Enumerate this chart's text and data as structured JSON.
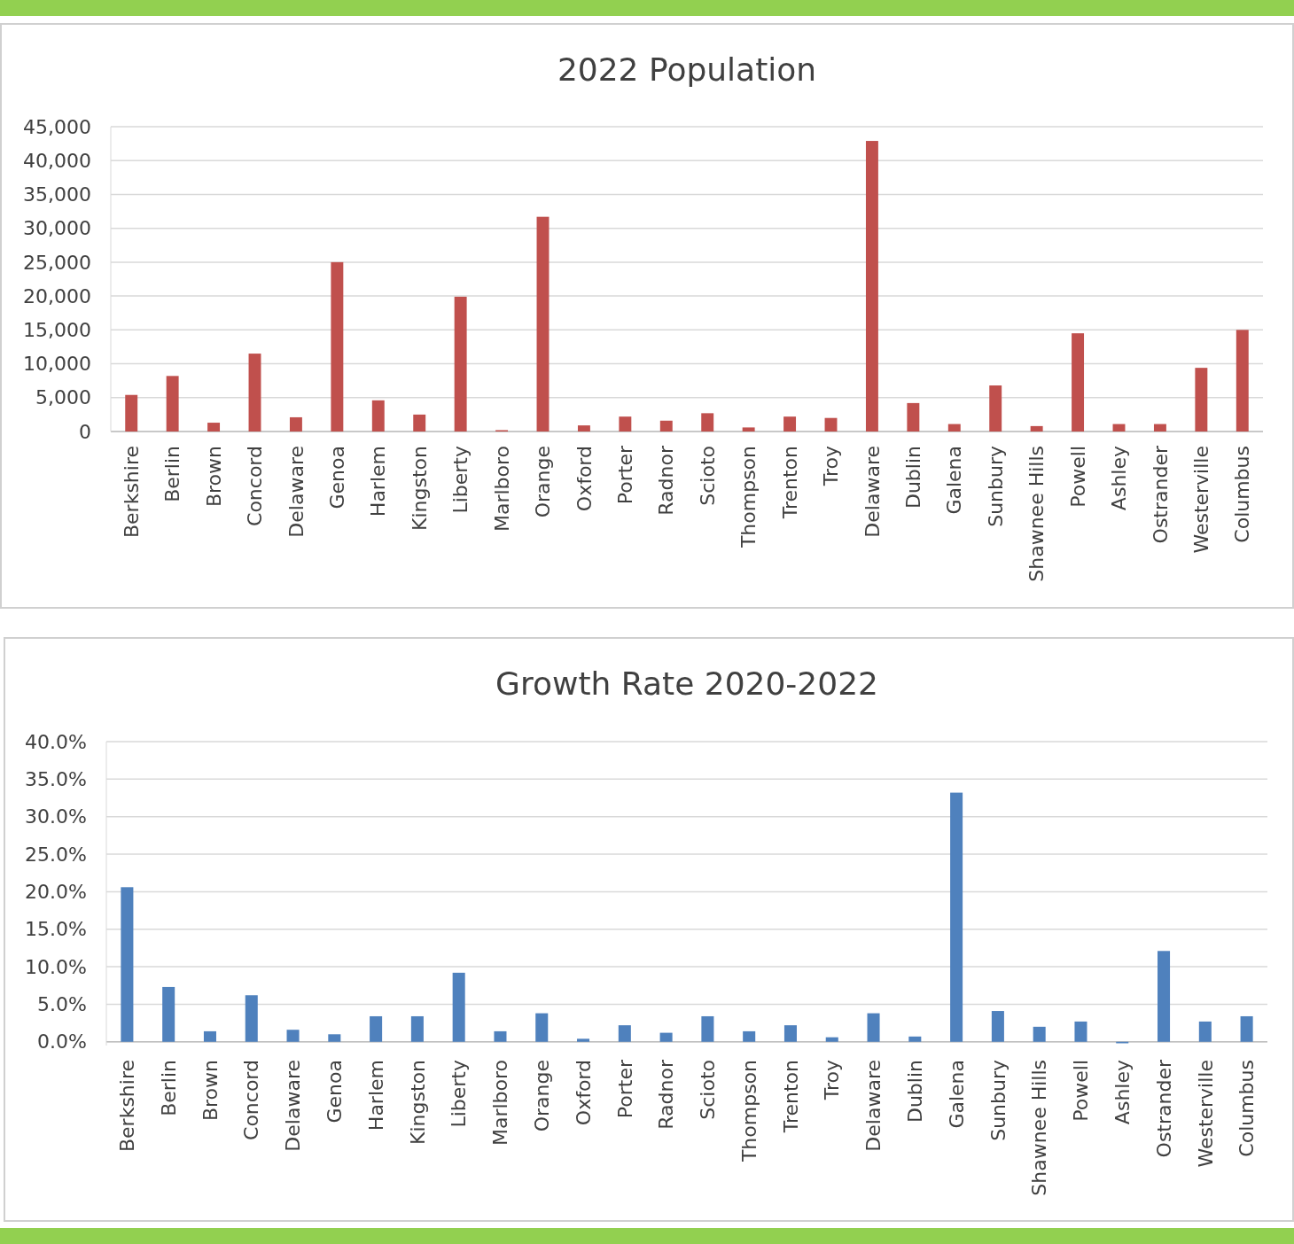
{
  "chart_data": [
    {
      "type": "bar",
      "title": "2022 Population",
      "categories": [
        "Berkshire",
        "Berlin",
        "Brown",
        "Concord",
        "Delaware",
        "Genoa",
        "Harlem",
        "Kingston",
        "Liberty",
        "Marlboro",
        "Orange",
        "Oxford",
        "Porter",
        "Radnor",
        "Scioto",
        "Thompson",
        "Trenton",
        "Troy",
        "Delaware",
        "Dublin",
        "Galena",
        "Sunbury",
        "Shawnee Hills",
        "Powell",
        "Ashley",
        "Ostrander",
        "Westerville",
        "Columbus"
      ],
      "values": [
        5400,
        8200,
        1300,
        11500,
        2100,
        25000,
        4600,
        2500,
        19900,
        200,
        31700,
        900,
        2200,
        1600,
        2700,
        600,
        2200,
        2000,
        42900,
        4200,
        1100,
        6800,
        800,
        14500,
        1100,
        1100,
        9400,
        15000
      ],
      "color": "#c0504d",
      "ylim": [
        0,
        45000
      ],
      "yticks": [
        0,
        {
          "value": 5000,
          "label": "5,000"
        },
        {
          "value": 10000,
          "label": "10,000"
        },
        {
          "value": 15000,
          "label": "15,000"
        },
        {
          "value": 20000,
          "label": "20,000"
        },
        {
          "value": 25000,
          "label": "25,000"
        },
        {
          "value": 30000,
          "label": "30,000"
        },
        {
          "value": 35000,
          "label": "35,000"
        },
        {
          "value": 40000,
          "label": "40,000"
        },
        {
          "value": 45000,
          "label": "45,000"
        }
      ],
      "grid": "y"
    },
    {
      "type": "bar",
      "title": "Growth Rate 2020-2022",
      "categories": [
        "Berkshire",
        "Berlin",
        "Brown",
        "Concord",
        "Delaware",
        "Genoa",
        "Harlem",
        "Kingston",
        "Liberty",
        "Marlboro",
        "Orange",
        "Oxford",
        "Porter",
        "Radnor",
        "Scioto",
        "Thompson",
        "Trenton",
        "Troy",
        "Delaware",
        "Dublin",
        "Galena",
        "Sunbury",
        "Shawnee Hills",
        "Powell",
        "Ashley",
        "Ostrander",
        "Westerville",
        "Columbus"
      ],
      "values": [
        20.6,
        7.3,
        1.4,
        6.2,
        1.6,
        1.0,
        3.4,
        3.4,
        9.2,
        1.4,
        3.8,
        0.4,
        2.2,
        1.2,
        3.4,
        1.4,
        2.2,
        0.6,
        3.8,
        0.7,
        33.2,
        4.1,
        2.0,
        2.7,
        -0.2,
        12.1,
        2.7,
        3.4
      ],
      "color": "#4f81bd",
      "ylim": [
        -0.5,
        40
      ],
      "yticks": [
        {
          "value": 0,
          "label": "0.0%"
        },
        {
          "value": 5,
          "label": "5.0%"
        },
        {
          "value": 10,
          "label": "10.0%"
        },
        {
          "value": 15,
          "label": "15.0%"
        },
        {
          "value": 20,
          "label": "20.0%"
        },
        {
          "value": 25,
          "label": "25.0%"
        },
        {
          "value": 30,
          "label": "30.0%"
        },
        {
          "value": 35,
          "label": "35.0%"
        },
        {
          "value": 40,
          "label": "40.0%"
        }
      ],
      "grid": "y"
    }
  ]
}
